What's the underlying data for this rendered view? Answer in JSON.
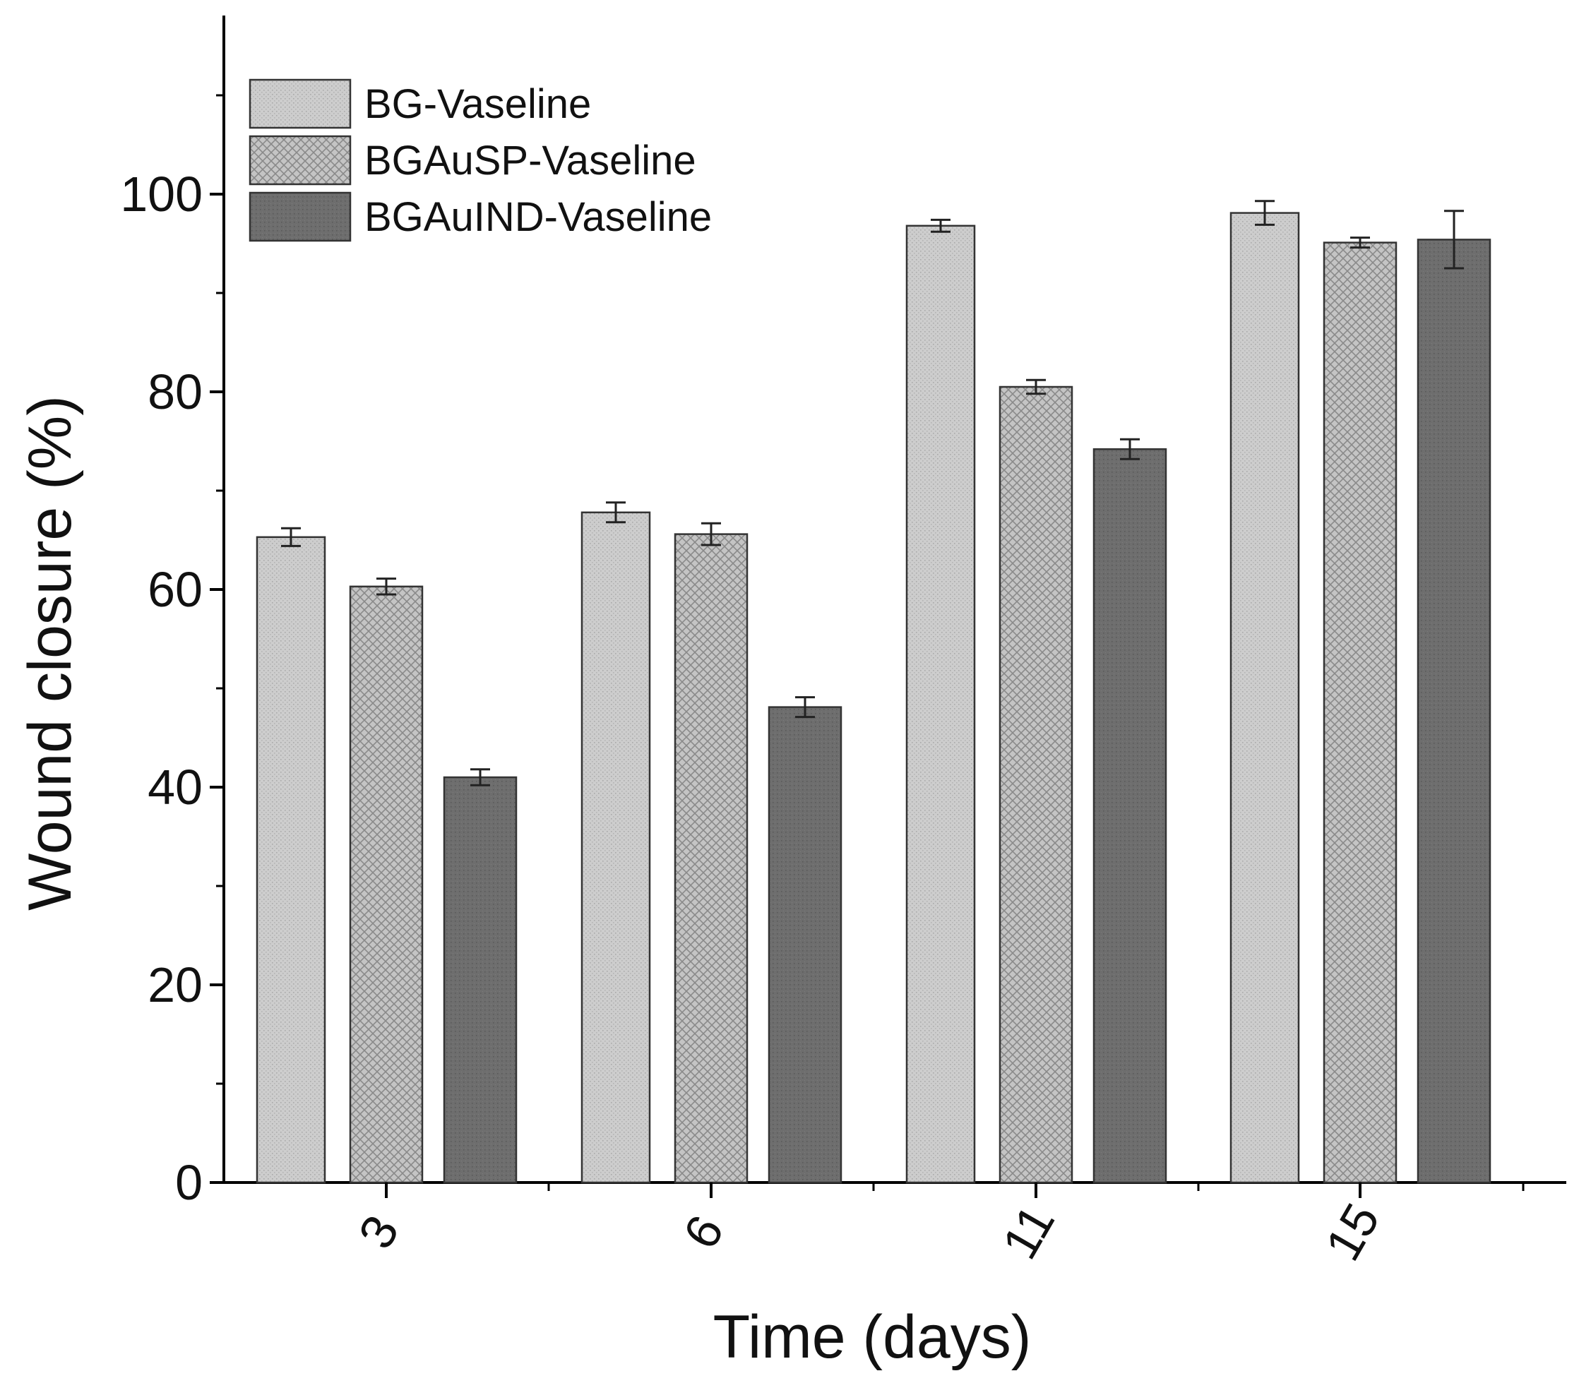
{
  "chart_data": {
    "type": "bar",
    "title": "",
    "xlabel": "Time (days)",
    "ylabel": "Wound closure (%)",
    "ylim": [
      0,
      118
    ],
    "yticks": [
      "0",
      "20",
      "40",
      "60",
      "80",
      "100"
    ],
    "categories": [
      "3",
      "6",
      "11",
      "15"
    ],
    "legend_position": "top-left",
    "grid": false,
    "series": [
      {
        "name": "BG-Vaseline",
        "values": [
          65.3,
          67.8,
          96.8,
          98.1
        ],
        "errors": [
          0.9,
          1.0,
          0.6,
          1.2
        ],
        "color": "#c8c8c8"
      },
      {
        "name": "BGAuSP-Vaseline",
        "values": [
          60.3,
          65.6,
          80.5,
          95.1
        ],
        "errors": [
          0.8,
          1.1,
          0.7,
          0.5
        ],
        "color": "#b3b3b3"
      },
      {
        "name": "BGAuIND-Vaseline",
        "values": [
          41.0,
          48.1,
          74.2,
          95.4
        ],
        "errors": [
          0.8,
          1.0,
          1.0,
          2.9
        ],
        "color": "#6f6f6f"
      }
    ]
  }
}
